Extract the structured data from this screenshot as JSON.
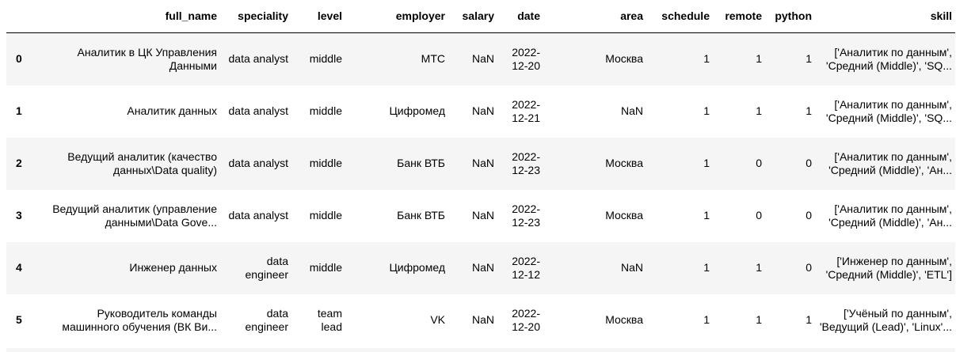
{
  "table": {
    "index_header": "",
    "columns": [
      "full_name",
      "speciality",
      "level",
      "employer",
      "salary",
      "date",
      "area",
      "schedule",
      "remote",
      "python",
      "skill"
    ],
    "rows": [
      {
        "index": "0",
        "cells": [
          "Аналитик в ЦК Управления Данными",
          "data analyst",
          "middle",
          "МТС",
          "NaN",
          "2022-12-20",
          "Москва",
          "1",
          "1",
          "1",
          "['Аналитик по данным', 'Средний (Middle)', 'SQ..."
        ]
      },
      {
        "index": "1",
        "cells": [
          "Аналитик данных",
          "data analyst",
          "middle",
          "Цифромед",
          "NaN",
          "2022-12-21",
          "NaN",
          "1",
          "1",
          "1",
          "['Аналитик по данным', 'Средний (Middle)', 'SQ..."
        ]
      },
      {
        "index": "2",
        "cells": [
          "Ведущий аналитик (качество данных\\Data quality)",
          "data analyst",
          "middle",
          "Банк ВТБ",
          "NaN",
          "2022-12-23",
          "Москва",
          "1",
          "0",
          "0",
          "['Аналитик по данным', 'Средний (Middle)', 'Ан..."
        ]
      },
      {
        "index": "3",
        "cells": [
          "Ведущий аналитик (управление данными\\Data Gove...",
          "data analyst",
          "middle",
          "Банк ВТБ",
          "NaN",
          "2022-12-23",
          "Москва",
          "1",
          "0",
          "0",
          "['Аналитик по данным', 'Средний (Middle)', 'Ан..."
        ]
      },
      {
        "index": "4",
        "cells": [
          "Инженер данных",
          "data engineer",
          "middle",
          "Цифромед",
          "NaN",
          "2022-12-12",
          "NaN",
          "1",
          "1",
          "0",
          "['Инженер по данным', 'Средний (Middle)', 'ETL']"
        ]
      },
      {
        "index": "5",
        "cells": [
          "Руководитель команды машинного обучения (ВК Ви...",
          "data engineer",
          "team lead",
          "VK",
          "NaN",
          "2022-12-20",
          "Москва",
          "1",
          "1",
          "1",
          "['Учёный по данным', 'Ведущий (Lead)', 'Linux'..."
        ]
      }
    ]
  }
}
